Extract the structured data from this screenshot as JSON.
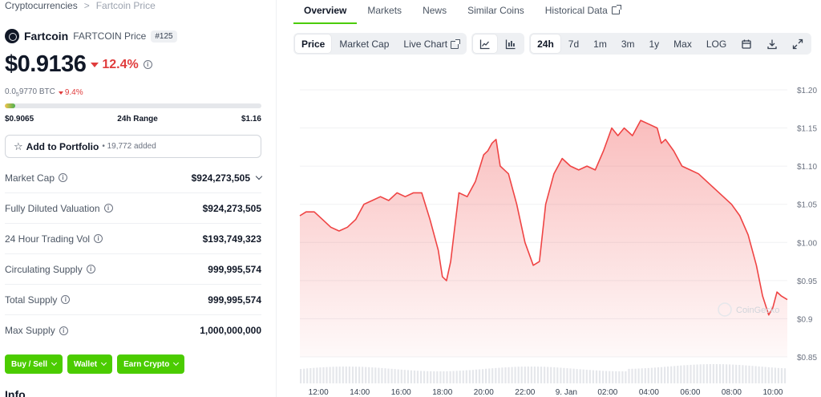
{
  "breadcrumb": {
    "root": "Cryptocurrencies",
    "current": "Fartcoin Price"
  },
  "coin": {
    "name": "Fartcoin",
    "symbol_label": "FARTCOIN Price",
    "rank": "#125",
    "price": "$0.9136",
    "change_24h": "12.4%",
    "btc_price_prefix": "0.0",
    "btc_price_sub": "5",
    "btc_price_suffix": "9770 BTC",
    "btc_change": "9.4%",
    "range_low": "$0.9065",
    "range_label": "24h Range",
    "range_high": "$1.16",
    "range_fill_fraction": 0.04
  },
  "portfolio": {
    "label": "Add to Portfolio",
    "added": "• 19,772 added"
  },
  "stats": [
    {
      "key": "Market Cap",
      "value": "$924,273,505",
      "expandable": true
    },
    {
      "key": "Fully Diluted Valuation",
      "value": "$924,273,505",
      "expandable": false
    },
    {
      "key": "24 Hour Trading Vol",
      "value": "$193,749,323",
      "expandable": false
    },
    {
      "key": "Circulating Supply",
      "value": "999,995,574",
      "expandable": false
    },
    {
      "key": "Total Supply",
      "value": "999,995,574",
      "expandable": false
    },
    {
      "key": "Max Supply",
      "value": "1,000,000,000",
      "expandable": false
    }
  ],
  "actions": {
    "buy_sell": "Buy / Sell",
    "wallet": "Wallet",
    "earn": "Earn Crypto"
  },
  "info_title": "Info",
  "tabs": [
    "Overview",
    "Markets",
    "News",
    "Similar Coins",
    "Historical Data"
  ],
  "toolbar": {
    "price": "Price",
    "market_cap": "Market Cap",
    "live_chart": "Live Chart",
    "ranges": [
      "24h",
      "7d",
      "1m",
      "3m",
      "1y",
      "Max"
    ],
    "log": "LOG"
  },
  "watermark": "CoinGecko",
  "colors": {
    "accent": "#4bcc00",
    "down": "#e03c3c",
    "line": "#ef4444"
  },
  "chart_data": {
    "type": "area",
    "title": "",
    "y_ticks": [
      "$1.20",
      "$1.15",
      "$1.10",
      "$1.05",
      "$1.00",
      "$0.95",
      "$0.9",
      "$0.85"
    ],
    "y_tick_values": [
      1.2,
      1.15,
      1.1,
      1.05,
      1.0,
      0.95,
      0.9,
      0.85
    ],
    "ylim": [
      0.85,
      1.2
    ],
    "x_ticks": [
      "12:00",
      "14:00",
      "16:00",
      "18:00",
      "20:00",
      "22:00",
      "9. Jan",
      "02:00",
      "04:00",
      "06:00",
      "08:00",
      "10:00"
    ],
    "x_tick_hours": [
      12,
      14,
      16,
      18,
      20,
      22,
      24,
      26,
      28,
      30,
      32,
      34
    ],
    "xlim": [
      11.1,
      34.7
    ],
    "series": [
      {
        "name": "Price",
        "x": [
          11.1,
          11.4,
          11.8,
          12.2,
          12.6,
          13.0,
          13.4,
          13.8,
          14.2,
          14.6,
          15.0,
          15.4,
          15.8,
          16.2,
          16.6,
          17.0,
          17.4,
          17.8,
          18.0,
          18.2,
          18.4,
          18.6,
          18.8,
          19.2,
          19.6,
          20.0,
          20.2,
          20.4,
          20.6,
          20.8,
          21.2,
          21.6,
          22.0,
          22.4,
          22.7,
          23.0,
          23.4,
          23.8,
          24.2,
          24.6,
          25.0,
          25.4,
          25.8,
          26.2,
          26.5,
          26.8,
          27.2,
          27.6,
          28.0,
          28.4,
          28.6,
          28.8,
          29.2,
          29.6,
          30.0,
          30.4,
          30.8,
          31.2,
          31.6,
          32.0,
          32.4,
          32.8,
          33.2,
          33.5,
          33.8,
          34.0,
          34.2,
          34.4,
          34.7
        ],
        "values": [
          1.035,
          1.04,
          1.04,
          1.03,
          1.02,
          1.015,
          1.02,
          1.03,
          1.05,
          1.055,
          1.06,
          1.055,
          1.065,
          1.06,
          1.065,
          1.065,
          1.03,
          0.99,
          0.955,
          0.95,
          0.975,
          1.02,
          1.065,
          1.06,
          1.08,
          1.115,
          1.12,
          1.13,
          1.135,
          1.1,
          1.09,
          1.05,
          1.0,
          0.97,
          0.975,
          1.05,
          1.09,
          1.11,
          1.1,
          1.095,
          1.1,
          1.095,
          1.12,
          1.15,
          1.14,
          1.15,
          1.14,
          1.16,
          1.155,
          1.15,
          1.13,
          1.135,
          1.12,
          1.1,
          1.095,
          1.09,
          1.08,
          1.07,
          1.06,
          1.05,
          1.035,
          1.01,
          0.97,
          0.93,
          0.905,
          0.915,
          0.935,
          0.93,
          0.925
        ]
      }
    ]
  }
}
